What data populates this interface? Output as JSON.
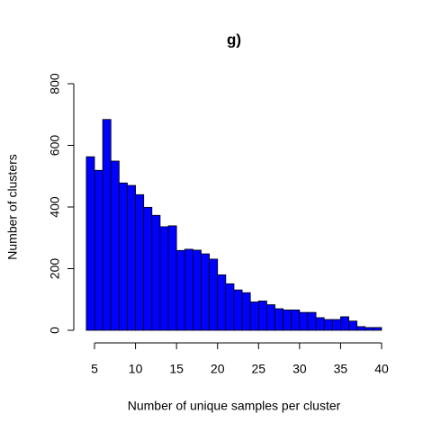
{
  "chart_data": {
    "type": "histogram",
    "title": "g)",
    "x_label": "Number of unique samples per cluster",
    "y_label": "Number of clusters",
    "bins": [
      4,
      5,
      6,
      7,
      8,
      9,
      10,
      11,
      12,
      13,
      14,
      15,
      16,
      17,
      18,
      19,
      20,
      21,
      22,
      23,
      24,
      25,
      26,
      27,
      28,
      29,
      30,
      31,
      32,
      33,
      34,
      35,
      36,
      37,
      38,
      39,
      40
    ],
    "values": [
      563,
      519,
      684,
      549,
      478,
      470,
      440,
      399,
      373,
      336,
      339,
      259,
      263,
      260,
      248,
      231,
      180,
      151,
      131,
      122,
      92,
      95,
      83,
      70,
      66,
      66,
      58,
      58,
      41,
      35,
      35,
      44,
      30,
      12,
      9,
      9
    ],
    "color": "#0000ff",
    "xlim": [
      4,
      40
    ],
    "ylim": [
      0,
      800
    ],
    "xticks": [
      5,
      10,
      15,
      20,
      25,
      30,
      35,
      40
    ],
    "yticks": [
      0,
      200,
      400,
      600,
      800
    ]
  }
}
